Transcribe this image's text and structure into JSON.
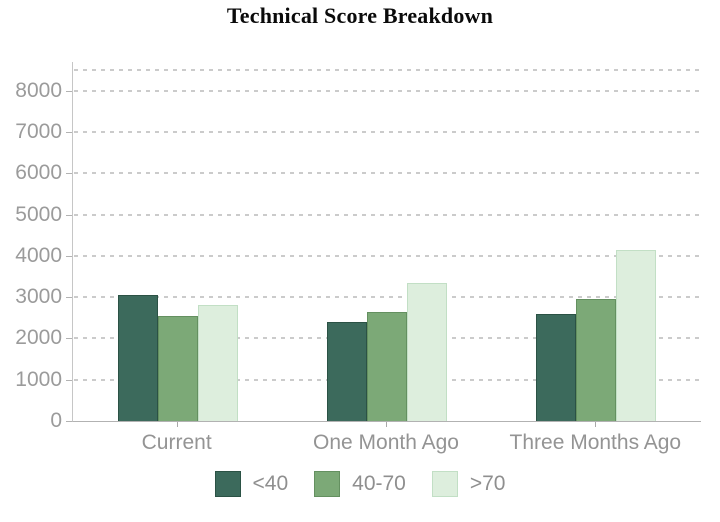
{
  "chart_data": {
    "type": "bar",
    "title": "Technical Score Breakdown",
    "categories": [
      "Current",
      "One Month Ago",
      "Three Months Ago"
    ],
    "series": [
      {
        "name": "<40",
        "color": "#3C6A5C",
        "border_color": "#2B5245",
        "values": [
          3050,
          2400,
          2600
        ]
      },
      {
        "name": "40-70",
        "color": "#7CA977",
        "border_color": "#649060",
        "values": [
          2550,
          2650,
          2950
        ]
      },
      {
        "name": ">70",
        "color": "#DDEEDD",
        "border_color": "#C2DFC5",
        "values": [
          2800,
          3350,
          4150
        ]
      }
    ],
    "xlabel": "",
    "ylabel": "",
    "ylim": [
      0,
      8700
    ],
    "yticks": [
      0,
      1000,
      2000,
      3000,
      4000,
      5000,
      6000,
      7000,
      8000
    ],
    "grid_values": [
      1000,
      2000,
      3000,
      4000,
      5000,
      6000,
      7000,
      8000,
      8500
    ],
    "grid_style": "dashed",
    "grid_color": "#cbcbcb",
    "axis_line_color": "#b2b2b2",
    "axis_label_color": "#9b9b9b",
    "title_color": "#0a0a0a",
    "legend_position": "bottom",
    "legend_labels": [
      "<40",
      "40-70",
      ">70"
    ]
  }
}
